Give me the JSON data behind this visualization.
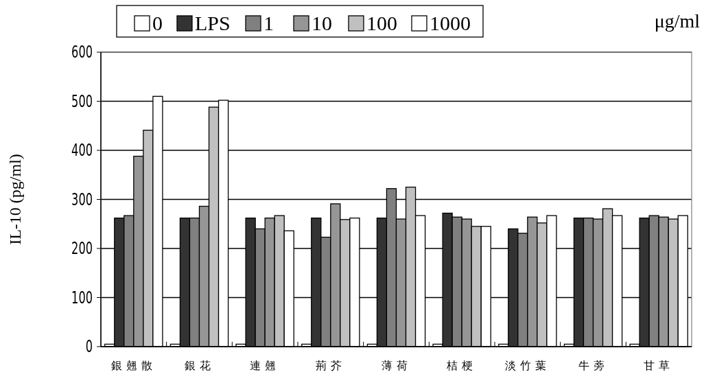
{
  "chart_data": {
    "type": "bar",
    "ylabel": "IL-10 (pg/ml)",
    "annotations": [
      "μg/ml"
    ],
    "categories": [
      "銀翹散",
      "銀花",
      "連翹",
      "荊芥",
      "薄荷",
      "桔梗",
      "淡竹葉",
      "牛蒡",
      "甘草"
    ],
    "series": [
      {
        "name": "0",
        "color": "#ffffff",
        "values": [
          5,
          5,
          5,
          5,
          5,
          5,
          5,
          5,
          5
        ]
      },
      {
        "name": "LPS",
        "color": "#333333",
        "values": [
          262,
          262,
          262,
          262,
          262,
          272,
          240,
          262,
          262
        ]
      },
      {
        "name": "1",
        "color": "#808080",
        "values": [
          267,
          262,
          240,
          223,
          322,
          264,
          231,
          262,
          267
        ]
      },
      {
        "name": "10",
        "color": "#969696",
        "values": [
          388,
          286,
          262,
          291,
          260,
          260,
          264,
          260,
          264
        ]
      },
      {
        "name": "100",
        "color": "#c0c0c0",
        "values": [
          441,
          488,
          267,
          259,
          325,
          245,
          252,
          281,
          260
        ]
      },
      {
        "name": "1000",
        "color": "#ffffff",
        "values": [
          510,
          502,
          236,
          262,
          267,
          245,
          267,
          267,
          267
        ]
      }
    ],
    "ylim": [
      0,
      600
    ],
    "yticks": [
      0,
      100,
      200,
      300,
      400,
      500,
      600
    ],
    "grid": "y",
    "legend": "top"
  }
}
